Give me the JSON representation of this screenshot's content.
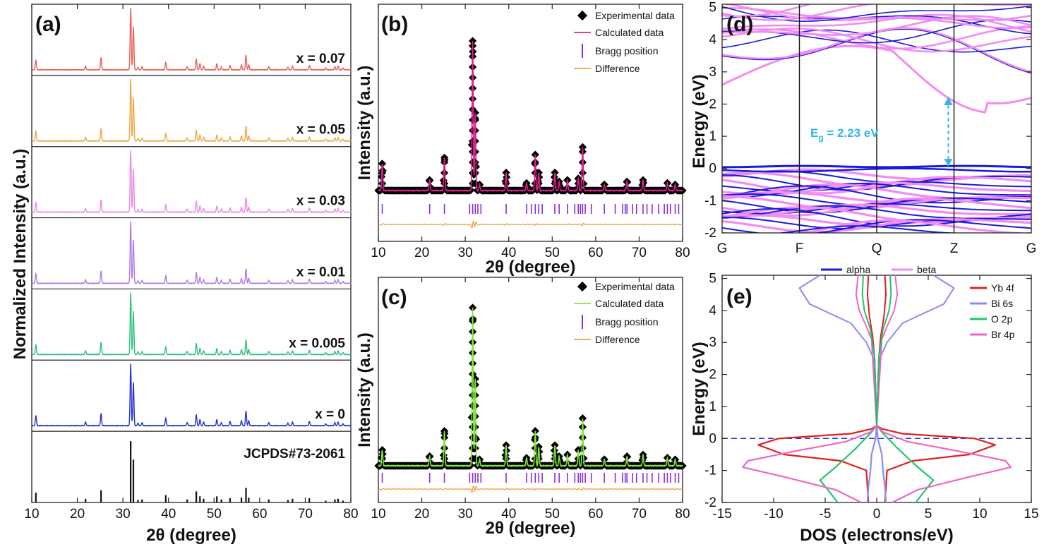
{
  "chart_data": [
    {
      "panel": "(a)",
      "type": "line",
      "xlabel": "2θ (degree)",
      "ylabel": "Normalized Intensity (a.u.)",
      "xlim": [
        10,
        80
      ],
      "xticks": [
        "10",
        "20",
        "30",
        "40",
        "50",
        "60",
        "70",
        "80"
      ],
      "stack": [
        {
          "name": "x = 0.07",
          "color": "#e8625a"
        },
        {
          "name": "x = 0.05",
          "color": "#f0a64a"
        },
        {
          "name": "x = 0.03",
          "color": "#e88ae8"
        },
        {
          "name": "x = 0.01",
          "color": "#b27ce8"
        },
        {
          "name": "x = 0.005",
          "color": "#2ec27e"
        },
        {
          "name": "x = 0",
          "color": "#2233cc"
        },
        {
          "name": "JCPDS#73-2061",
          "color": "#111111"
        }
      ],
      "peaks": [
        [
          10.9,
          0.16
        ],
        [
          21.8,
          0.06
        ],
        [
          25.2,
          0.2
        ],
        [
          31.7,
          1.0
        ],
        [
          32.3,
          0.7
        ],
        [
          33.3,
          0.04
        ],
        [
          34.2,
          0.05
        ],
        [
          39.4,
          0.12
        ],
        [
          44.1,
          0.05
        ],
        [
          46.1,
          0.18
        ],
        [
          46.9,
          0.1
        ],
        [
          47.7,
          0.06
        ],
        [
          50.6,
          0.1
        ],
        [
          51.6,
          0.05
        ],
        [
          53.5,
          0.07
        ],
        [
          56.0,
          0.08
        ],
        [
          57.0,
          0.24
        ],
        [
          57.6,
          0.08
        ],
        [
          62.0,
          0.05
        ],
        [
          66.2,
          0.04
        ],
        [
          67.2,
          0.06
        ],
        [
          70.9,
          0.07
        ],
        [
          74.5,
          0.03
        ],
        [
          76.5,
          0.05
        ],
        [
          77.2,
          0.06
        ],
        [
          78.3,
          0.03
        ]
      ]
    },
    {
      "panel": "(b)",
      "type": "scatter",
      "xlabel": "2θ (degree)",
      "ylabel": "Intensity (a.u.)",
      "xlim": [
        10,
        80
      ],
      "xticks": [
        "10",
        "20",
        "30",
        "40",
        "50",
        "60",
        "70",
        "80"
      ],
      "series": [
        {
          "name": "Experimental data",
          "color": "#000000"
        },
        {
          "name": "Calculated data",
          "color": "#e01f8e"
        },
        {
          "name": "Bragg position",
          "color": "#8a2be2"
        },
        {
          "name": "Difference",
          "color": "#f0a040"
        }
      ],
      "peaks": [
        [
          10.9,
          0.18
        ],
        [
          21.8,
          0.07
        ],
        [
          25.2,
          0.22
        ],
        [
          31.7,
          1.0
        ],
        [
          32.3,
          0.52
        ],
        [
          33.3,
          0.04
        ],
        [
          39.4,
          0.12
        ],
        [
          44.1,
          0.05
        ],
        [
          46.1,
          0.24
        ],
        [
          46.9,
          0.12
        ],
        [
          50.6,
          0.12
        ],
        [
          51.6,
          0.06
        ],
        [
          53.5,
          0.07
        ],
        [
          56.0,
          0.08
        ],
        [
          57.0,
          0.29
        ],
        [
          62.0,
          0.04
        ],
        [
          67.2,
          0.06
        ],
        [
          70.9,
          0.07
        ],
        [
          76.5,
          0.05
        ],
        [
          78.3,
          0.04
        ]
      ],
      "bragg": [
        10.9,
        21.8,
        25.2,
        31.0,
        31.7,
        32.3,
        32.9,
        33.6,
        39.4,
        44.1,
        45.2,
        46.1,
        46.9,
        47.7,
        50.6,
        51.6,
        53.5,
        55.2,
        56.0,
        56.5,
        57.0,
        57.6,
        59.0,
        62.0,
        64.5,
        66.2,
        66.8,
        67.2,
        68.5,
        69.4,
        70.9,
        71.8,
        73.0,
        74.5,
        75.8,
        76.5,
        77.2,
        78.3,
        79.1
      ]
    },
    {
      "panel": "(c)",
      "type": "scatter",
      "xlabel": "2θ (degree)",
      "ylabel": "Intensity (a.u.)",
      "xlim": [
        10,
        80
      ],
      "xticks": [
        "10",
        "20",
        "30",
        "40",
        "50",
        "60",
        "70",
        "80"
      ],
      "series": [
        {
          "name": "Experimental data",
          "color": "#000000"
        },
        {
          "name": "Calculated data",
          "color": "#7ee83a"
        },
        {
          "name": "Bragg position",
          "color": "#8a2be2"
        },
        {
          "name": "Difference",
          "color": "#f0a040"
        }
      ],
      "peaks": [
        [
          10.9,
          0.1
        ],
        [
          21.8,
          0.06
        ],
        [
          25.2,
          0.22
        ],
        [
          31.7,
          1.0
        ],
        [
          32.3,
          0.55
        ],
        [
          33.3,
          0.04
        ],
        [
          39.4,
          0.13
        ],
        [
          44.1,
          0.05
        ],
        [
          46.1,
          0.22
        ],
        [
          46.9,
          0.12
        ],
        [
          50.6,
          0.13
        ],
        [
          51.6,
          0.06
        ],
        [
          53.5,
          0.07
        ],
        [
          56.0,
          0.1
        ],
        [
          57.0,
          0.3
        ],
        [
          62.0,
          0.04
        ],
        [
          67.2,
          0.06
        ],
        [
          70.9,
          0.07
        ],
        [
          76.5,
          0.05
        ],
        [
          78.3,
          0.04
        ]
      ],
      "bragg": [
        10.9,
        21.8,
        25.2,
        31.0,
        31.7,
        32.3,
        32.9,
        33.6,
        39.4,
        44.1,
        45.2,
        46.1,
        46.9,
        47.7,
        50.6,
        51.6,
        53.5,
        55.2,
        56.0,
        56.5,
        57.0,
        57.6,
        59.0,
        62.0,
        64.5,
        66.2,
        66.8,
        67.2,
        68.5,
        69.4,
        70.9,
        71.8,
        73.0,
        74.5,
        75.8,
        76.5,
        77.2,
        78.3,
        79.1
      ]
    },
    {
      "panel": "(d)",
      "type": "line",
      "ylabel": "Energy (eV)",
      "ylim": [
        -2,
        5.1
      ],
      "yticks": [
        "-2",
        "-1",
        "0",
        "1",
        "2",
        "3",
        "4",
        "5"
      ],
      "kpoints": [
        "G",
        "F",
        "Q",
        "Z",
        "G"
      ],
      "series": [
        {
          "name": "alpha",
          "color": "#1a1adb"
        },
        {
          "name": "beta",
          "color": "#f28cf0"
        }
      ],
      "gap_label": "E",
      "gap_sub": "g",
      "gap_value": " = 2.23 eV",
      "gap_at": "Z",
      "gap_range_ev": [
        0.08,
        2.23
      ],
      "gap_color": "#2fb5e8"
    },
    {
      "panel": "(e)",
      "type": "line",
      "xlabel": "DOS (electrons/eV)",
      "ylabel": "Energy (eV)",
      "xlim": [
        -15,
        15
      ],
      "ylim": [
        -2,
        5.1
      ],
      "xticks": [
        "-15",
        "-10",
        "-5",
        "0",
        "5",
        "10",
        "15"
      ],
      "yticks": [
        "-2",
        "-1",
        "0",
        "1",
        "2",
        "3",
        "4",
        "5"
      ],
      "fermi_level": 0,
      "series": [
        {
          "name": "Yb 4f",
          "color": "#e02020",
          "x": [
            0,
            0.5,
            2.5,
            9.5,
            11.5,
            9.0,
            3.5,
            1.0,
            0.8
          ],
          "y": [
            0.4,
            0.3,
            0.15,
            0.0,
            -0.2,
            -0.5,
            -0.7,
            -1.0,
            -2.0
          ]
        },
        {
          "name": "Bi 6s",
          "color": "#8c8cf0",
          "x": [
            0,
            0.1,
            0.5,
            0.6,
            0.8,
            0.9
          ],
          "y": [
            0.4,
            0.0,
            -0.5,
            -1.0,
            -1.5,
            -2.0
          ]
        },
        {
          "name": "O 2p",
          "color": "#22c46a",
          "x": [
            0,
            0.5,
            2.0,
            3.0,
            4.0,
            5.5,
            4.5,
            3.8
          ],
          "y": [
            0.4,
            0.2,
            -0.3,
            -0.6,
            -0.9,
            -1.3,
            -1.7,
            -2.0
          ]
        },
        {
          "name": "Br 4p",
          "color": "#ee66c8",
          "x": [
            0,
            0.6,
            3.0,
            8.0,
            12.5,
            13.0,
            9.0,
            4.0,
            1.5
          ],
          "y": [
            0.4,
            0.2,
            -0.1,
            -0.4,
            -0.7,
            -0.9,
            -1.2,
            -1.6,
            -2.0
          ]
        }
      ]
    }
  ]
}
